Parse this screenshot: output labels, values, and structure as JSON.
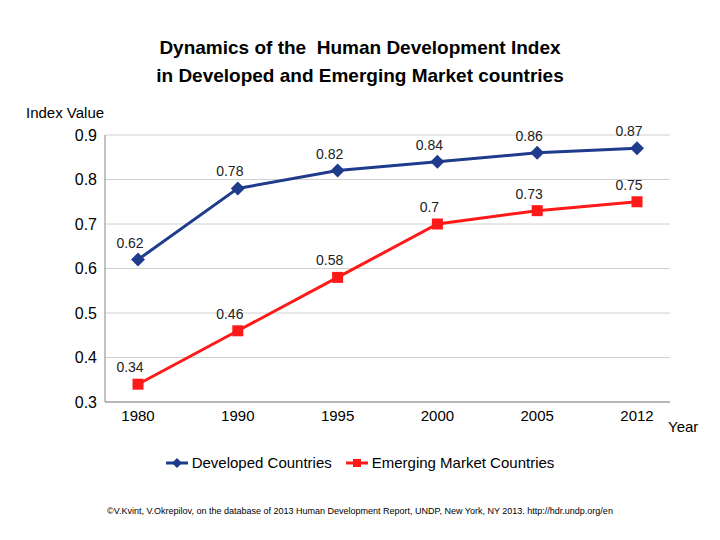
{
  "chart_data": {
    "type": "line",
    "title": "Dynamics of the  Human Development Index\nin Developed and Emerging Market countries",
    "y_label": "Index Value",
    "x_label": "Year",
    "source": "©V.Kvint, V.Okrepilov, on the database of 2013 Human Development Report, UNDP, New York, NY 2013. http://hdr.undp.org/en",
    "categories": [
      "1980",
      "1990",
      "1995",
      "2000",
      "2005",
      "2012"
    ],
    "series": [
      {
        "name": "Developed Countries",
        "color": "#1f3b8c",
        "marker": "diamond",
        "values": [
          0.62,
          0.78,
          0.82,
          0.84,
          0.86,
          0.87
        ]
      },
      {
        "name": "Emerging Market Countries",
        "color": "#ff1a1a",
        "marker": "square",
        "values": [
          0.34,
          0.46,
          0.58,
          0.7,
          0.73,
          0.75
        ]
      }
    ],
    "ylim": [
      0.3,
      0.9
    ],
    "yticks": [
      0.3,
      0.4,
      0.5,
      0.6,
      0.7,
      0.8,
      0.9
    ],
    "grid": true,
    "legend": "bottom",
    "data_labels": true
  }
}
